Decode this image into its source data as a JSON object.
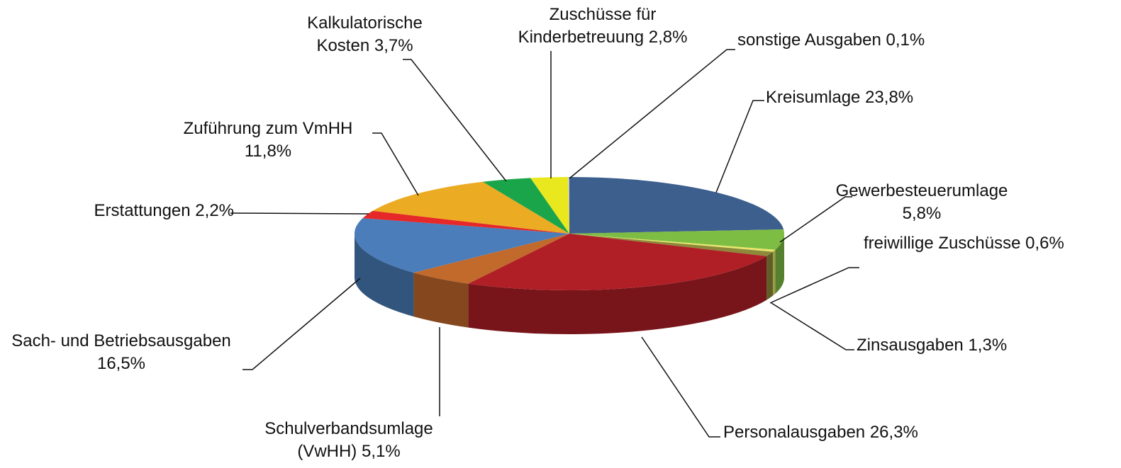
{
  "chart_data": {
    "type": "pie3d",
    "categories": [
      "Kreisumlage",
      "Gewerbesteuerumlage",
      "freiwillige Zuschüsse",
      "Zinsausgaben",
      "Personalausgaben",
      "Schulverbandsumlage (VwHH)",
      "Sach- und Betriebsausgaben",
      "Erstattungen ",
      "Zuführung zum VmHH",
      "Kalkulatorische Kosten",
      "Zuschüsse für Kinderbetreuung",
      "sonstige Ausgaben"
    ],
    "values": [
      23.8,
      5.8,
      0.6,
      1.3,
      26.3,
      5.1,
      16.5,
      2.2,
      11.8,
      3.7,
      2.8,
      0.1
    ],
    "value_labels": [
      "23,8%",
      "5,8%",
      "0,6%",
      "1,3%",
      "26,3%",
      "5,1%",
      "16,5%",
      "2,2%",
      "11,8%",
      "3,7%",
      "2,8%",
      "0,1%"
    ],
    "colors": [
      "#3c5f8e",
      "#7dbd43",
      "#e8e66a",
      "#8c8a3a",
      "#b01f26",
      "#c2692c",
      "#4a7dba",
      "#e62828",
      "#ebab22",
      "#1ba54a",
      "#e9e81e",
      "#c8c8c8"
    ]
  }
}
